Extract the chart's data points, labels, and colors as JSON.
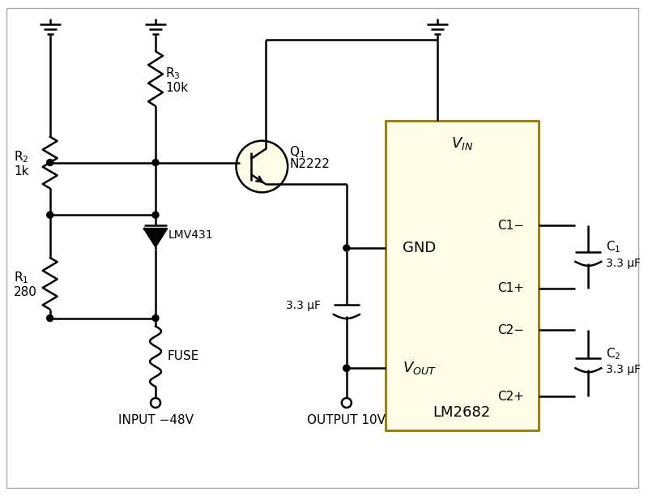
{
  "bg_color": "#ffffff",
  "ic_fill": "#fffde7",
  "ic_border": "#997700",
  "line_color": "#000000",
  "line_width": 1.8,
  "components": {
    "R1": {
      "label": "R$_1$",
      "value": "280"
    },
    "R2": {
      "label": "R$_2$",
      "value": "1k"
    },
    "R3": {
      "label": "R$_3$",
      "value": "10k"
    },
    "Q1": {
      "label": "Q$_1$",
      "sublabel": "N2222"
    },
    "C1": {
      "label": "C$_1$",
      "value": "3.3 μF"
    },
    "C2": {
      "label": "C$_2$",
      "value": "3.3 μF"
    },
    "C3": {
      "value": "3.3 μF"
    },
    "LMV431": {
      "label": "LMV431"
    },
    "LM2682": {
      "label": "LM2682"
    },
    "FUSE": {
      "label": "FUSE"
    },
    "INPUT": {
      "label": "INPUT −48V"
    },
    "OUTPUT": {
      "label": "OUTPUT 10V"
    }
  }
}
